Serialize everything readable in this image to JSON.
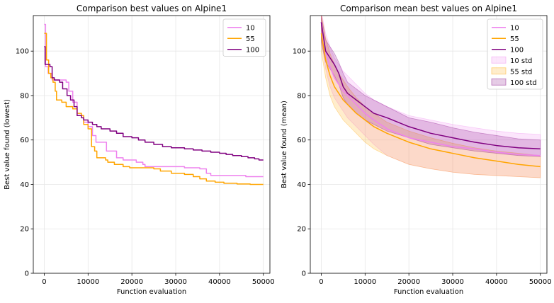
{
  "figure": {
    "background": "#ffffff"
  },
  "chart_data": [
    {
      "type": "line",
      "title": "Comparison best values on Alpine1",
      "xlabel": "Function evaluation",
      "ylabel": "Best value found (lowest)",
      "xlim": [
        -2500,
        51500
      ],
      "ylim": [
        0,
        116
      ],
      "xticks": [
        0,
        10000,
        20000,
        30000,
        40000,
        50000
      ],
      "xtick_labels": [
        "0",
        "10000",
        "20000",
        "30000",
        "40000",
        "50000"
      ],
      "yticks": [
        0,
        20,
        40,
        60,
        80,
        100
      ],
      "ytick_labels": [
        "0",
        "20",
        "40",
        "60",
        "80",
        "100"
      ],
      "grid": true,
      "legend": {
        "position": "top-right",
        "entries": [
          "10",
          "55",
          "100"
        ]
      },
      "series": [
        {
          "name": "10",
          "color": "#ee82ee",
          "kind": "step",
          "points": [
            [
              0,
              112
            ],
            [
              300,
              112
            ],
            [
              300,
              93
            ],
            [
              900,
              93
            ],
            [
              900,
              90
            ],
            [
              1800,
              90
            ],
            [
              1800,
              87
            ],
            [
              5000,
              87
            ],
            [
              5000,
              86
            ],
            [
              5600,
              86
            ],
            [
              5600,
              82
            ],
            [
              6500,
              82
            ],
            [
              6500,
              77
            ],
            [
              7500,
              77
            ],
            [
              7500,
              71
            ],
            [
              9000,
              71
            ],
            [
              9000,
              68
            ],
            [
              10000,
              68
            ],
            [
              10000,
              66
            ],
            [
              11000,
              66
            ],
            [
              11000,
              62
            ],
            [
              11800,
              62
            ],
            [
              11800,
              59
            ],
            [
              14200,
              59
            ],
            [
              14200,
              55
            ],
            [
              16500,
              55
            ],
            [
              16500,
              52
            ],
            [
              18000,
              52
            ],
            [
              18000,
              51
            ],
            [
              21000,
              51
            ],
            [
              21000,
              50
            ],
            [
              22500,
              50
            ],
            [
              22500,
              49
            ],
            [
              23000,
              49
            ],
            [
              23000,
              48
            ],
            [
              32000,
              48
            ],
            [
              32000,
              47.5
            ],
            [
              35500,
              47.5
            ],
            [
              35500,
              47
            ],
            [
              37000,
              47
            ],
            [
              37000,
              45
            ],
            [
              38000,
              45
            ],
            [
              38000,
              44
            ],
            [
              46000,
              44
            ],
            [
              46000,
              43.5
            ],
            [
              50000,
              43.5
            ]
          ]
        },
        {
          "name": "55",
          "color": "#ffa500",
          "kind": "step",
          "points": [
            [
              0,
              108
            ],
            [
              500,
              108
            ],
            [
              500,
              96
            ],
            [
              1000,
              96
            ],
            [
              1000,
              90
            ],
            [
              1500,
              90
            ],
            [
              1500,
              88
            ],
            [
              2000,
              88
            ],
            [
              2000,
              86
            ],
            [
              2500,
              86
            ],
            [
              2500,
              82
            ],
            [
              2800,
              82
            ],
            [
              2800,
              78
            ],
            [
              4000,
              78
            ],
            [
              4000,
              77
            ],
            [
              5000,
              77
            ],
            [
              5000,
              75
            ],
            [
              6500,
              75
            ],
            [
              6500,
              74
            ],
            [
              7500,
              74
            ],
            [
              7500,
              72
            ],
            [
              8500,
              72
            ],
            [
              8500,
              71
            ],
            [
              9000,
              71
            ],
            [
              9000,
              67
            ],
            [
              10000,
              67
            ],
            [
              10000,
              65
            ],
            [
              10800,
              65
            ],
            [
              10800,
              57
            ],
            [
              11500,
              57
            ],
            [
              11500,
              55
            ],
            [
              12000,
              55
            ],
            [
              12000,
              52
            ],
            [
              14000,
              52
            ],
            [
              14000,
              51
            ],
            [
              14500,
              51
            ],
            [
              14500,
              50
            ],
            [
              16000,
              50
            ],
            [
              16000,
              49
            ],
            [
              18000,
              49
            ],
            [
              18000,
              48
            ],
            [
              19500,
              48
            ],
            [
              19500,
              47.5
            ],
            [
              25000,
              47.5
            ],
            [
              25000,
              47
            ],
            [
              26500,
              47
            ],
            [
              26500,
              46
            ],
            [
              29000,
              46
            ],
            [
              29000,
              45
            ],
            [
              32000,
              45
            ],
            [
              32000,
              44.5
            ],
            [
              34000,
              44.5
            ],
            [
              34000,
              43.5
            ],
            [
              35500,
              43.5
            ],
            [
              35500,
              42.5
            ],
            [
              37000,
              42.5
            ],
            [
              37000,
              41.5
            ],
            [
              39000,
              41.5
            ],
            [
              39000,
              41
            ],
            [
              41000,
              41
            ],
            [
              41000,
              40.5
            ],
            [
              44000,
              40.5
            ],
            [
              44000,
              40.2
            ],
            [
              47000,
              40.2
            ],
            [
              47000,
              40
            ],
            [
              50000,
              40
            ]
          ]
        },
        {
          "name": "100",
          "color": "#800080",
          "kind": "step",
          "points": [
            [
              0,
              102
            ],
            [
              200,
              102
            ],
            [
              200,
              94
            ],
            [
              1300,
              94
            ],
            [
              1300,
              93
            ],
            [
              1800,
              93
            ],
            [
              1800,
              88
            ],
            [
              2300,
              88
            ],
            [
              2300,
              87
            ],
            [
              3500,
              87
            ],
            [
              3500,
              86
            ],
            [
              4200,
              86
            ],
            [
              4200,
              83
            ],
            [
              5200,
              83
            ],
            [
              5200,
              80
            ],
            [
              6000,
              80
            ],
            [
              6000,
              78
            ],
            [
              6800,
              78
            ],
            [
              6800,
              75
            ],
            [
              7500,
              75
            ],
            [
              7500,
              71
            ],
            [
              8500,
              71
            ],
            [
              8500,
              70
            ],
            [
              9000,
              70
            ],
            [
              9000,
              69
            ],
            [
              10000,
              69
            ],
            [
              10000,
              68
            ],
            [
              11000,
              68
            ],
            [
              11000,
              67
            ],
            [
              12000,
              67
            ],
            [
              12000,
              66
            ],
            [
              13000,
              66
            ],
            [
              13000,
              65
            ],
            [
              15000,
              65
            ],
            [
              15000,
              64
            ],
            [
              16500,
              64
            ],
            [
              16500,
              63
            ],
            [
              18000,
              63
            ],
            [
              18000,
              61.5
            ],
            [
              20000,
              61.5
            ],
            [
              20000,
              61
            ],
            [
              21500,
              61
            ],
            [
              21500,
              60
            ],
            [
              23000,
              60
            ],
            [
              23000,
              59
            ],
            [
              25000,
              59
            ],
            [
              25000,
              58
            ],
            [
              27000,
              58
            ],
            [
              27000,
              57
            ],
            [
              29000,
              57
            ],
            [
              29000,
              56.5
            ],
            [
              32000,
              56.5
            ],
            [
              32000,
              56
            ],
            [
              34000,
              56
            ],
            [
              34000,
              55.5
            ],
            [
              36000,
              55.5
            ],
            [
              36000,
              55
            ],
            [
              38000,
              55
            ],
            [
              38000,
              54.5
            ],
            [
              40000,
              54.5
            ],
            [
              40000,
              54
            ],
            [
              41500,
              54
            ],
            [
              41500,
              53.5
            ],
            [
              43000,
              53.5
            ],
            [
              43000,
              53
            ],
            [
              45000,
              53
            ],
            [
              45000,
              52.5
            ],
            [
              46500,
              52.5
            ],
            [
              46500,
              52
            ],
            [
              48000,
              52
            ],
            [
              48000,
              51.5
            ],
            [
              49000,
              51.5
            ],
            [
              49000,
              51
            ],
            [
              50000,
              51
            ]
          ]
        }
      ]
    },
    {
      "type": "line",
      "title": "Comparison mean best values on Alpine1",
      "xlabel": "Function evaluation",
      "ylabel": "Best value found (mean)",
      "xlim": [
        -2500,
        51500
      ],
      "ylim": [
        0,
        116
      ],
      "xticks": [
        0,
        10000,
        20000,
        30000,
        40000,
        50000
      ],
      "xtick_labels": [
        "0",
        "10000",
        "20000",
        "30000",
        "40000",
        "50000"
      ],
      "yticks": [
        0,
        20,
        40,
        60,
        80,
        100
      ],
      "ytick_labels": [
        "0",
        "20",
        "40",
        "60",
        "80",
        "100"
      ],
      "grid": true,
      "legend": {
        "position": "top-right",
        "entries": [
          "10",
          "55",
          "100",
          "10 std",
          "55 std",
          "100 std"
        ]
      },
      "series": [
        {
          "name": "10",
          "color": "#ee82ee",
          "std_color": "#ee82ee",
          "x": [
            0,
            1000,
            2000,
            3000,
            4000,
            5000,
            6000,
            8000,
            10000,
            12000,
            15000,
            20000,
            25000,
            30000,
            35000,
            40000,
            45000,
            50000
          ],
          "mean": [
            113,
            100,
            93,
            88,
            85,
            82,
            80,
            76,
            72,
            69,
            65,
            61,
            59,
            57,
            56,
            54.5,
            53.5,
            53
          ],
          "lower": [
            106,
            92,
            84,
            79,
            76,
            73,
            70,
            66,
            62,
            58,
            53,
            49,
            47,
            45.5,
            44.5,
            44,
            43.5,
            43
          ],
          "upper": [
            118,
            108,
            102,
            97,
            94,
            91,
            89,
            85,
            81,
            78,
            75,
            71,
            69,
            67,
            65.5,
            64,
            63,
            62.5
          ]
        },
        {
          "name": "55",
          "color": "#ffa500",
          "std_color": "#ffa500",
          "x": [
            0,
            1000,
            2000,
            3000,
            4000,
            5000,
            6000,
            8000,
            10000,
            12000,
            15000,
            20000,
            25000,
            30000,
            35000,
            40000,
            45000,
            50000
          ],
          "mean": [
            108,
            96,
            89,
            84,
            81,
            78,
            76,
            72,
            69,
            66,
            63,
            59,
            56,
            54,
            52,
            50.5,
            49,
            48
          ],
          "lower": [
            100,
            88,
            80,
            75,
            72,
            69,
            67,
            63,
            59,
            56,
            53,
            49,
            47,
            45.5,
            44.5,
            44,
            43.5,
            43
          ],
          "upper": [
            117,
            106,
            99,
            94,
            90,
            87,
            84,
            79,
            75,
            72,
            68,
            64,
            61,
            58.5,
            56.5,
            55,
            54,
            53
          ]
        },
        {
          "name": "100",
          "color": "#800080",
          "std_color": "#800080",
          "x": [
            0,
            1000,
            2000,
            3000,
            4000,
            5000,
            6000,
            8000,
            10000,
            12000,
            15000,
            20000,
            25000,
            30000,
            35000,
            40000,
            45000,
            50000
          ],
          "mean": [
            113,
            100,
            97,
            94,
            90,
            84,
            81,
            78,
            75,
            72,
            70,
            66,
            63,
            61,
            59,
            57.5,
            56.5,
            56
          ],
          "lower": [
            104,
            95,
            92,
            89,
            85,
            79,
            76,
            72,
            69,
            67,
            64,
            61,
            58,
            56.5,
            55,
            54,
            53,
            52.5
          ],
          "upper": [
            116,
            105,
            102,
            99,
            95,
            90,
            86,
            83,
            80,
            78,
            75,
            70,
            68,
            65.5,
            63.5,
            62,
            60.5,
            60
          ]
        }
      ]
    }
  ]
}
